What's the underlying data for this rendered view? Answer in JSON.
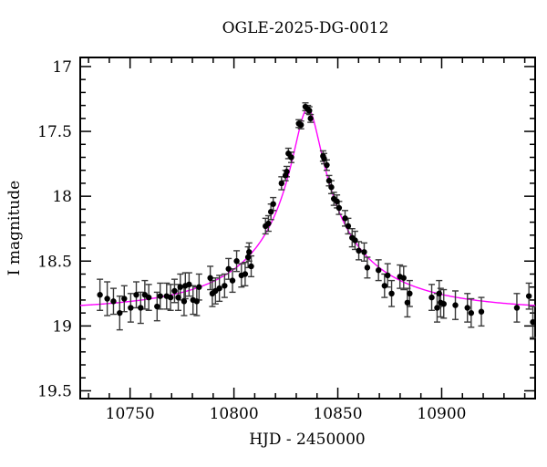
{
  "title": "OGLE-2025-DG-0012",
  "axes": {
    "xlabel": "HJD - 2450000",
    "ylabel": "I magnitude",
    "xlim": [
      10726,
      10945
    ],
    "ylim_top": 16.93,
    "ylim_bottom": 19.56,
    "y_axis_inverted": true,
    "x_ticks": [
      {
        "v": 10750,
        "label": "10750"
      },
      {
        "v": 10800,
        "label": "10800"
      },
      {
        "v": 10850,
        "label": "10850"
      },
      {
        "v": 10900,
        "label": "10900"
      }
    ],
    "x_ticks_minor": [
      10730,
      10740,
      10760,
      10770,
      10780,
      10790,
      10810,
      10820,
      10830,
      10840,
      10860,
      10870,
      10880,
      10890,
      10910,
      10920,
      10930,
      10940
    ],
    "y_ticks": [
      {
        "v": 17.0,
        "label": "17"
      },
      {
        "v": 17.5,
        "label": "17.5"
      },
      {
        "v": 18.0,
        "label": "18"
      },
      {
        "v": 18.5,
        "label": "18.5"
      },
      {
        "v": 19.0,
        "label": "19"
      },
      {
        "v": 19.5,
        "label": "19.5"
      }
    ],
    "y_ticks_minor": [
      17.1,
      17.2,
      17.3,
      17.4,
      17.6,
      17.7,
      17.8,
      17.9,
      18.1,
      18.2,
      18.3,
      18.4,
      18.6,
      18.7,
      18.8,
      18.9,
      19.1,
      19.2,
      19.3,
      19.4
    ]
  },
  "colors": {
    "background": "#ffffff",
    "frame": "#000000",
    "marker": "#000000",
    "errorbar": "#3a3a3a",
    "model_curve": "#ff00ff"
  },
  "chart_data": {
    "type": "scatter",
    "title": "OGLE-2025-DG-0012",
    "xlabel": "HJD - 2450000",
    "ylabel": "I magnitude",
    "x_range": [
      10726,
      10945
    ],
    "y_range": [
      19.56,
      16.93
    ],
    "y_axis_inverted": true,
    "grid": false,
    "legend": false,
    "points_format": [
      "hjd_minus_2450000",
      "i_magnitude",
      "mag_error"
    ],
    "points": [
      [
        10735.5,
        18.76,
        0.12
      ],
      [
        10739.0,
        18.79,
        0.13
      ],
      [
        10742.0,
        18.81,
        0.1
      ],
      [
        10745.0,
        18.9,
        0.13
      ],
      [
        10747.2,
        18.79,
        0.1
      ],
      [
        10750.3,
        18.86,
        0.11
      ],
      [
        10753.0,
        18.76,
        0.1
      ],
      [
        10755.1,
        18.86,
        0.12
      ],
      [
        10757.1,
        18.76,
        0.11
      ],
      [
        10759.0,
        18.78,
        0.1
      ],
      [
        10763.0,
        18.85,
        0.11
      ],
      [
        10764.5,
        18.77,
        0.1
      ],
      [
        10767.6,
        18.77,
        0.1
      ],
      [
        10769.5,
        18.78,
        0.1
      ],
      [
        10771.4,
        18.73,
        0.09
      ],
      [
        10773.2,
        18.78,
        0.1
      ],
      [
        10774.2,
        18.7,
        0.1
      ],
      [
        10776.0,
        18.81,
        0.11
      ],
      [
        10776.6,
        18.69,
        0.1
      ],
      [
        10778.4,
        18.68,
        0.09
      ],
      [
        10780.3,
        18.8,
        0.11
      ],
      [
        10782.1,
        18.81,
        0.11
      ],
      [
        10783.2,
        18.7,
        0.1
      ],
      [
        10788.6,
        18.63,
        0.09
      ],
      [
        10789.6,
        18.75,
        0.1
      ],
      [
        10791.1,
        18.73,
        0.1
      ],
      [
        10793.0,
        18.71,
        0.1
      ],
      [
        10795.5,
        18.69,
        0.09
      ],
      [
        10797.4,
        18.56,
        0.08
      ],
      [
        10799.3,
        18.65,
        0.09
      ],
      [
        10801.3,
        18.5,
        0.08
      ],
      [
        10803.6,
        18.61,
        0.09
      ],
      [
        10805.4,
        18.6,
        0.09
      ],
      [
        10806.8,
        18.47,
        0.08
      ],
      [
        10807.3,
        18.43,
        0.07
      ],
      [
        10808.3,
        18.54,
        0.08
      ],
      [
        10815.2,
        18.23,
        0.06
      ],
      [
        10816.6,
        18.21,
        0.06
      ],
      [
        10817.8,
        18.12,
        0.06
      ],
      [
        10818.9,
        18.06,
        0.05
      ],
      [
        10822.9,
        17.9,
        0.05
      ],
      [
        10824.8,
        17.84,
        0.04
      ],
      [
        10825.4,
        17.81,
        0.04
      ],
      [
        10826.2,
        17.67,
        0.04
      ],
      [
        10827.6,
        17.7,
        0.04
      ],
      [
        10831.2,
        17.44,
        0.03
      ],
      [
        10832.3,
        17.45,
        0.03
      ],
      [
        10834.4,
        17.31,
        0.03
      ],
      [
        10835.6,
        17.33,
        0.03
      ],
      [
        10836.3,
        17.34,
        0.03
      ],
      [
        10836.9,
        17.4,
        0.03
      ],
      [
        10842.9,
        17.69,
        0.04
      ],
      [
        10843.4,
        17.71,
        0.04
      ],
      [
        10844.7,
        17.76,
        0.04
      ],
      [
        10845.8,
        17.88,
        0.04
      ],
      [
        10846.9,
        17.93,
        0.05
      ],
      [
        10848.1,
        18.02,
        0.05
      ],
      [
        10849.6,
        18.04,
        0.05
      ],
      [
        10850.6,
        18.09,
        0.05
      ],
      [
        10853.5,
        18.17,
        0.06
      ],
      [
        10855.0,
        18.23,
        0.06
      ],
      [
        10856.9,
        18.32,
        0.07
      ],
      [
        10858.3,
        18.34,
        0.07
      ],
      [
        10860.1,
        18.42,
        0.07
      ],
      [
        10862.7,
        18.43,
        0.07
      ],
      [
        10864.2,
        18.55,
        0.08
      ],
      [
        10869.6,
        18.57,
        0.08
      ],
      [
        10872.5,
        18.69,
        0.09
      ],
      [
        10874.0,
        18.61,
        0.09
      ],
      [
        10875.9,
        18.75,
        0.1
      ],
      [
        10879.9,
        18.62,
        0.09
      ],
      [
        10881.7,
        18.63,
        0.09
      ],
      [
        10883.5,
        18.82,
        0.11
      ],
      [
        10884.6,
        18.75,
        0.1
      ],
      [
        10895.2,
        18.78,
        0.1
      ],
      [
        10897.8,
        18.86,
        0.11
      ],
      [
        10898.8,
        18.75,
        0.1
      ],
      [
        10899.5,
        18.82,
        0.11
      ],
      [
        10901.0,
        18.83,
        0.11
      ],
      [
        10906.6,
        18.84,
        0.11
      ],
      [
        10912.4,
        18.86,
        0.11
      ],
      [
        10914.2,
        18.9,
        0.11
      ],
      [
        10919.1,
        18.89,
        0.11
      ],
      [
        10936.2,
        18.86,
        0.11
      ],
      [
        10942.0,
        18.77,
        0.1
      ],
      [
        10943.9,
        18.97,
        0.12
      ]
    ],
    "model_curve": {
      "type": "paczynski_microlensing",
      "color": "#ff00ff",
      "t0": 10835.5,
      "tE": 70,
      "u0": 0.086,
      "fs": 0.3,
      "baseline_mag": 18.88,
      "peak_mag": 17.32
    }
  }
}
